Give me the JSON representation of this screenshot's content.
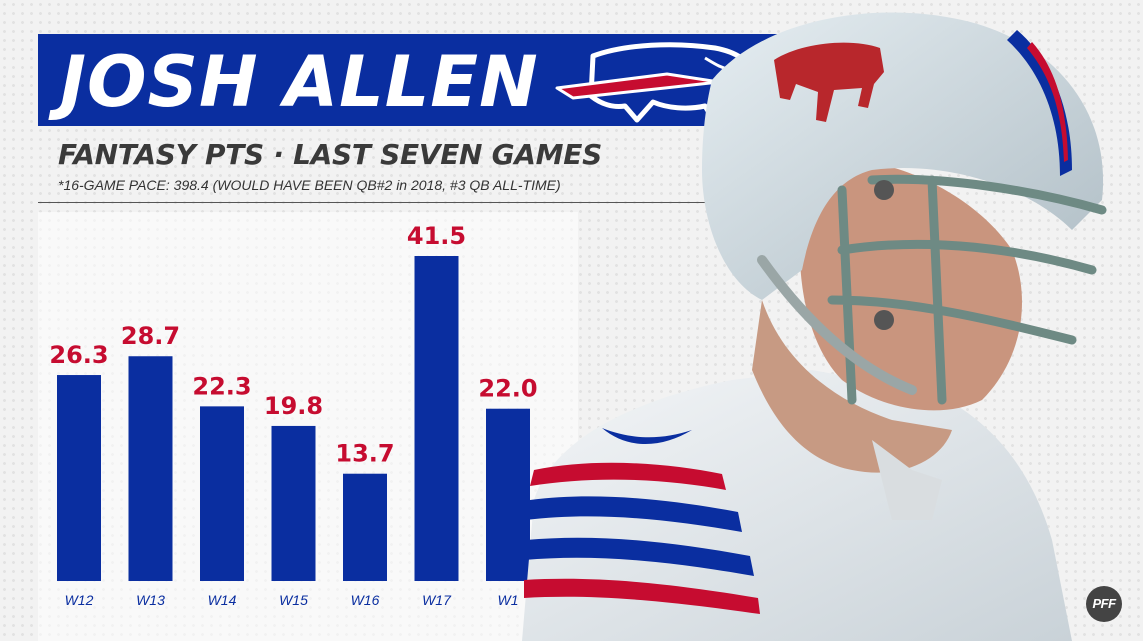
{
  "header": {
    "player_name": "JOSH ALLEN",
    "subtitle": "FANTASY PTS · LAST SEVEN GAMES",
    "footnote": "*16-GAME PACE: 398.4 (WOULD HAVE BEEN QB#2 in 2018, #3 QB ALL-TIME)"
  },
  "watermark": "PFF",
  "colors": {
    "bar": "#0a2ea0",
    "value_label": "#c60c30",
    "band": "#0a2ea0"
  },
  "icons": {
    "logo": "buffalo-bills-logo",
    "photo": "football-player-helmet"
  },
  "chart_data": {
    "type": "bar",
    "categories": [
      "W12",
      "W13",
      "W14",
      "W15",
      "W16",
      "W17",
      "W1"
    ],
    "values": [
      26.3,
      28.7,
      22.3,
      19.8,
      13.7,
      41.5,
      22.0
    ],
    "value_labels": [
      "26.3",
      "28.7",
      "22.3",
      "19.8",
      "13.7",
      "41.5",
      "22.0"
    ],
    "title": "FANTASY PTS · LAST SEVEN GAMES",
    "xlabel": "",
    "ylabel": "",
    "ylim": [
      0,
      41.5
    ],
    "grid": false,
    "legend": "none"
  }
}
